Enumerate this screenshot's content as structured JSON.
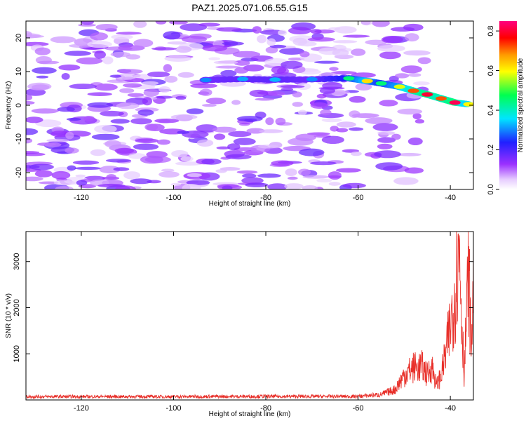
{
  "title": "PAZ1.2025.071.06.55.G15",
  "chart_data": [
    {
      "type": "heatmap",
      "xlabel": "Height of straight line (km)",
      "ylabel": "Frequency (Hz)",
      "xlim": [
        -132,
        -35
      ],
      "ylim": [
        -25,
        25
      ],
      "xticks": [
        -120,
        -100,
        -80,
        -60,
        -40
      ],
      "yticks": [
        20,
        10,
        0,
        -10,
        -20
      ],
      "grid": false,
      "colorbar": {
        "label": "Normalized spectral amplitude",
        "range": [
          0,
          0.85
        ],
        "ticks": [
          0.0,
          0.2,
          0.4,
          0.6,
          0.8
        ],
        "colors": [
          "#ffffff",
          "#e6ccff",
          "#9b30ff",
          "#2020ff",
          "#00e5ff",
          "#00ff50",
          "#ffff00",
          "#ff9900",
          "#ff0000",
          "#ff0080"
        ]
      },
      "signal_track": [
        {
          "x": -93,
          "freq": 7.5,
          "amp": 0.3
        },
        {
          "x": -85,
          "freq": 7.8,
          "amp": 0.32
        },
        {
          "x": -78,
          "freq": 7.6,
          "amp": 0.33
        },
        {
          "x": -70,
          "freq": 7.7,
          "amp": 0.3
        },
        {
          "x": -62,
          "freq": 8.0,
          "amp": 0.45
        },
        {
          "x": -58,
          "freq": 7.2,
          "amp": 0.62
        },
        {
          "x": -55,
          "freq": 6.5,
          "amp": 0.45
        },
        {
          "x": -51,
          "freq": 5.5,
          "amp": 0.58
        },
        {
          "x": -48,
          "freq": 4.3,
          "amp": 0.72
        },
        {
          "x": -45,
          "freq": 3.2,
          "amp": 0.8
        },
        {
          "x": -42,
          "freq": 2.0,
          "amp": 0.72
        },
        {
          "x": -39,
          "freq": 0.8,
          "amp": 0.82
        },
        {
          "x": -36,
          "freq": 0.3,
          "amp": 0.6
        }
      ],
      "background_noise_amp": 0.12
    },
    {
      "type": "line",
      "xlabel": "Height of straight line (km)",
      "ylabel": "SNR (10 * v/v)",
      "xlim": [
        -132,
        -35
      ],
      "ylim": [
        0,
        3650
      ],
      "xticks": [
        -120,
        -100,
        -80,
        -60,
        -40
      ],
      "yticks": [
        1000,
        2000,
        3000
      ],
      "color": "#e8302a",
      "grid": false,
      "x": [
        -132,
        -120,
        -100,
        -80,
        -60,
        -55,
        -52,
        -50,
        -48,
        -46,
        -45,
        -44,
        -43,
        -42,
        -41,
        -40,
        -39,
        -38,
        -37.5,
        -37,
        -36.5,
        -36,
        -35.5,
        -35
      ],
      "y": [
        80,
        80,
        80,
        85,
        85,
        130,
        250,
        600,
        780,
        800,
        600,
        820,
        350,
        600,
        1100,
        1800,
        2600,
        3650,
        2000,
        600,
        2000,
        3100,
        1200,
        2700
      ]
    }
  ]
}
